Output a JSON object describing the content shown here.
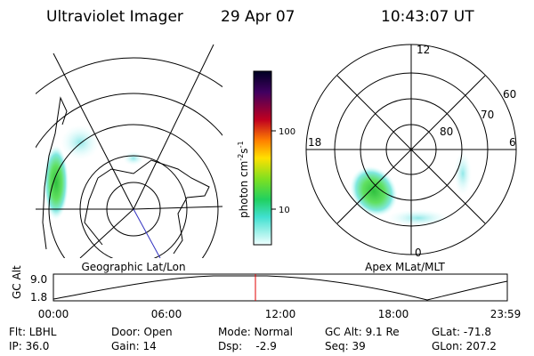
{
  "header": {
    "title": "Ultraviolet Imager",
    "date": "29 Apr 07",
    "time": "10:43:07 UT"
  },
  "colorbar": {
    "ticks": [
      "100",
      "10"
    ],
    "unit": [
      "photon cm",
      "-2",
      "s",
      "-1"
    ]
  },
  "left_panel": {
    "caption": "Geographic Lat/Lon"
  },
  "right_panel": {
    "caption": "Apex MLat/MLT",
    "mlt_labels": [
      "12",
      "18",
      "6",
      "0"
    ],
    "lat_labels": [
      "60",
      "70",
      "80"
    ]
  },
  "altitude_strip": {
    "label": "GC Alt",
    "yticks": [
      "9.0",
      "1.8"
    ],
    "xticks": [
      "00:00",
      "06:00",
      "12:00",
      "18:00",
      "23:59"
    ]
  },
  "footer": {
    "rows": [
      [
        "Flt: LBHL",
        "Door: Open",
        "Mode: Normal",
        "GC Alt: 9.1 Re",
        "GLat: -71.8"
      ],
      [
        "IP: 36.0",
        "Gain: 14",
        "Dsp:    -2.9",
        "Seq: 39",
        "GLon: 207.2"
      ]
    ]
  }
}
